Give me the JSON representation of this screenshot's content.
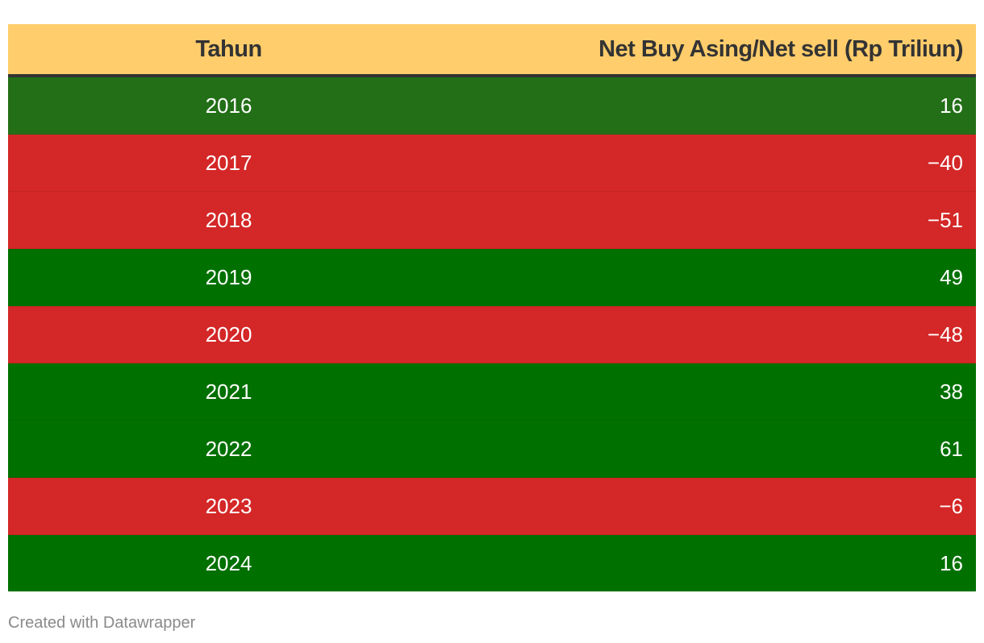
{
  "chart_data": {
    "type": "table",
    "columns": [
      "Tahun",
      "Net Buy Asing/Net sell (Rp Triliun)"
    ],
    "rows": [
      {
        "year": "2016",
        "value": "16"
      },
      {
        "year": "2017",
        "value": "−40"
      },
      {
        "year": "2018",
        "value": "−51"
      },
      {
        "year": "2019",
        "value": "49"
      },
      {
        "year": "2020",
        "value": "−48"
      },
      {
        "year": "2021",
        "value": "38"
      },
      {
        "year": "2022",
        "value": "61"
      },
      {
        "year": "2023",
        "value": "−6"
      },
      {
        "year": "2024",
        "value": "16"
      }
    ],
    "row_colors": [
      "#236f17",
      "#d42727",
      "#d42727",
      "#007000",
      "#d42727",
      "#007000",
      "#007000",
      "#d42727",
      "#007000"
    ],
    "header_color": "#ffcd6b"
  },
  "footer": {
    "credit": "Created with Datawrapper"
  }
}
